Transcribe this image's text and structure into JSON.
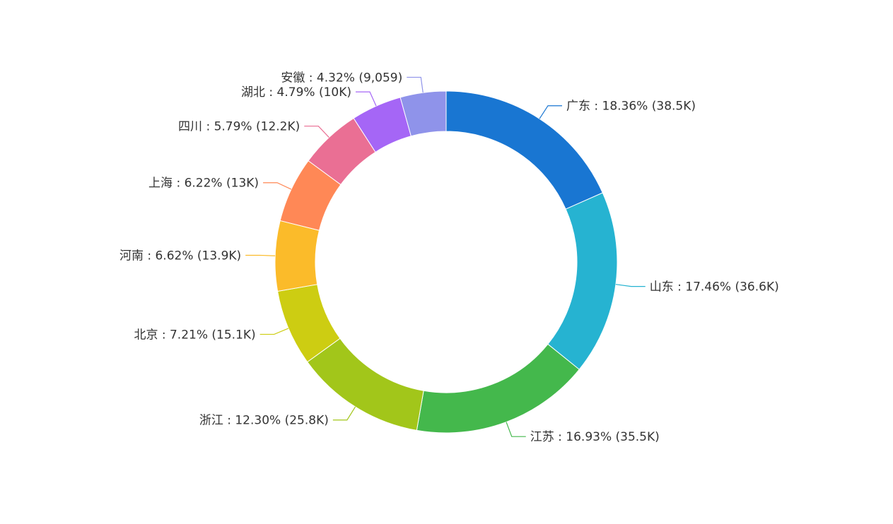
{
  "chart_data": {
    "type": "pie",
    "variant": "donut",
    "title": "",
    "label_format": "{name} : {percent} ({value})",
    "slices": [
      {
        "name": "广东",
        "value": 38500,
        "value_label": "38.5K",
        "percent": "18.36%",
        "color": "#1976d2"
      },
      {
        "name": "山东",
        "value": 36600,
        "value_label": "36.6K",
        "percent": "17.46%",
        "color": "#26b3d1"
      },
      {
        "name": "江苏",
        "value": 35500,
        "value_label": "35.5K",
        "percent": "16.93%",
        "color": "#44b84c"
      },
      {
        "name": "浙江",
        "value": 25800,
        "value_label": "25.8K",
        "percent": "12.30%",
        "color": "#a2c61a"
      },
      {
        "name": "北京",
        "value": 15100,
        "value_label": "15.1K",
        "percent": "7.21%",
        "color": "#cdcd12"
      },
      {
        "name": "河南",
        "value": 13900,
        "value_label": "13.9K",
        "percent": "6.62%",
        "color": "#fbbb2a"
      },
      {
        "name": "上海",
        "value": 13000,
        "value_label": "13K",
        "percent": "6.22%",
        "color": "#ff8856"
      },
      {
        "name": "四川",
        "value": 12200,
        "value_label": "12.2K",
        "percent": "5.79%",
        "color": "#ea6f94"
      },
      {
        "name": "湖北",
        "value": 10000,
        "value_label": "10K",
        "percent": "4.79%",
        "color": "#a566f6"
      },
      {
        "name": "安徽",
        "value": 9059,
        "value_label": "9,059",
        "percent": "4.32%",
        "color": "#8f93ea"
      }
    ]
  }
}
